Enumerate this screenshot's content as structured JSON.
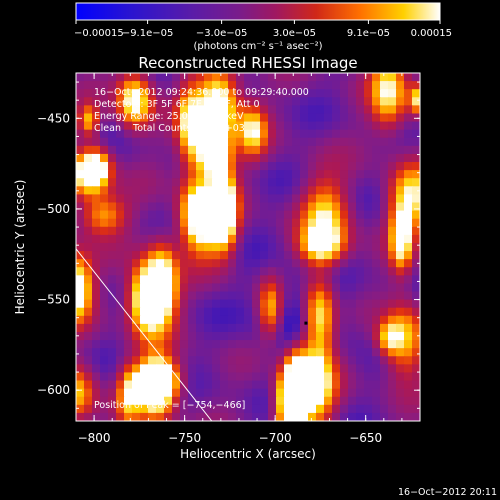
{
  "chart_data": {
    "type": "heatmap",
    "title": "Reconstructed RHESSI Image",
    "xlabel": "Heliocentric X (arcsec)",
    "ylabel": "Heliocentric Y (arcsec)",
    "xlim": [
      -810,
      -620
    ],
    "ylim": [
      -617,
      -425
    ],
    "x_ticks": [
      -800,
      -750,
      -700,
      -650
    ],
    "y_ticks": [
      -600,
      -550,
      -500,
      -450
    ],
    "x_tick_labels": [
      "−800",
      "−750",
      "−700",
      "−650"
    ],
    "y_tick_labels": [
      "−600",
      "−550",
      "−500",
      "−450"
    ],
    "colorbar": {
      "min": -0.00015,
      "max": 0.00015,
      "tick_values": [
        -0.00015,
        -9.1e-05,
        -3e-05,
        3e-05,
        9.1e-05,
        0.00015
      ],
      "tick_labels": [
        "−0.00015",
        "−9.1e−05",
        "−3.0e−05",
        "3.0e−05",
        "9.1e−05",
        "0.00015"
      ],
      "units_label": "(photons cm⁻² s⁻¹ asec⁻²)"
    },
    "annotations": [
      "16−Oct−2012 09:24:36.000 to 09:29:40.000",
      "Detectors: 3F 5F 6F 7F 8F 9F, Att 0",
      "Energy Range: 25.0 − 50.0 keV",
      "Clean    Total Counts: 5.71E+03"
    ],
    "peak_label": "Position of Peak = [−754,−466]",
    "peak_position": [
      -754,
      -466
    ],
    "limb_line": [
      [
        -810,
        -522
      ],
      [
        -735,
        -617
      ]
    ],
    "marker_position": [
      -683,
      -563
    ],
    "footer_timestamp": "16−Oct−2012 20:11",
    "colors": {
      "background": "#000000",
      "text": "#ffffff",
      "colormap_stops": [
        "#0000ff",
        "#2010c8",
        "#5a1ca8",
        "#8a1c80",
        "#b01850",
        "#e03010",
        "#ff8000",
        "#ffd000",
        "#ffffff"
      ]
    },
    "grid": false
  }
}
